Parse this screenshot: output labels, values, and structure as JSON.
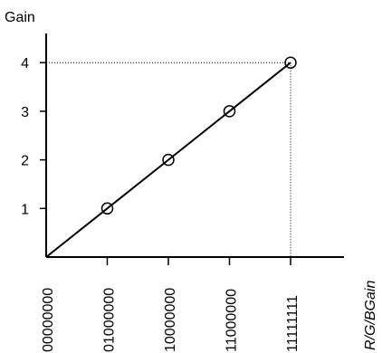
{
  "chart_data": {
    "type": "line",
    "ylabel": "Gain",
    "xlabel": "R/G/BGain",
    "x_ticks": [
      "00000000",
      "01000000",
      "10000000",
      "11000000",
      "11111111"
    ],
    "y_ticks": [
      "1",
      "2",
      "3",
      "4"
    ],
    "ylim": [
      0,
      4.6
    ],
    "series": [
      {
        "x": [
          "00000000",
          "01000000",
          "10000000",
          "11000000",
          "11111111"
        ],
        "values": [
          0,
          1,
          2,
          3,
          4
        ],
        "markers_at": [
          "01000000",
          "10000000",
          "11000000",
          "11111111"
        ]
      }
    ],
    "guides": {
      "horizontal_at_y": 4,
      "vertical_at_x": "11111111"
    },
    "grid": false,
    "legend": "none"
  }
}
